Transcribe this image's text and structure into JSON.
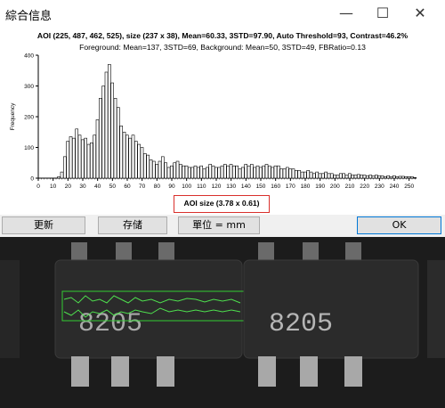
{
  "window": {
    "title": "綜合信息",
    "minimize_icon": "minimize-icon",
    "maximize_icon": "maximize-icon",
    "close_icon": "close-icon"
  },
  "info": {
    "line1": "AOI (225, 487, 462, 525), size (237 x 38), Mean=60.33, 3STD=97.90, Auto Threshold=93, Contrast=46.2%",
    "line2": "Foreground: Mean=137, 3STD=69, Background: Mean=50, 3STD=49, FBRatio=0.13"
  },
  "aoi_size": "AOI size (3.78 x 0.61)",
  "buttons": {
    "refresh": "更新",
    "save": "存储",
    "unit": "單位 = mm",
    "ok": "OK"
  },
  "photo": {
    "chip_left_text": "8205",
    "chip_right_text": "8205"
  },
  "chart_data": {
    "type": "bar",
    "ylabel": "Frequency",
    "xlabel": "",
    "ylim": [
      0,
      400
    ],
    "xlim": [
      0,
      255
    ],
    "yticks": [
      0,
      100,
      200,
      300,
      400
    ],
    "xticks": [
      0,
      10,
      20,
      30,
      40,
      50,
      60,
      70,
      80,
      90,
      100,
      110,
      120,
      130,
      140,
      150,
      160,
      170,
      180,
      190,
      200,
      210,
      220,
      230,
      240,
      250
    ],
    "bar_width": 2,
    "x": [
      14,
      16,
      18,
      20,
      22,
      24,
      26,
      28,
      30,
      32,
      34,
      36,
      38,
      40,
      42,
      44,
      46,
      48,
      50,
      52,
      54,
      56,
      58,
      60,
      62,
      64,
      66,
      68,
      70,
      72,
      74,
      76,
      78,
      80,
      82,
      84,
      86,
      88,
      90,
      92,
      94,
      96,
      98,
      100,
      102,
      104,
      106,
      108,
      110,
      112,
      114,
      116,
      118,
      120,
      122,
      124,
      126,
      128,
      130,
      132,
      134,
      136,
      138,
      140,
      142,
      144,
      146,
      148,
      150,
      152,
      154,
      156,
      158,
      160,
      162,
      164,
      166,
      168,
      170,
      172,
      174,
      176,
      178,
      180,
      182,
      184,
      186,
      188,
      190,
      192,
      194,
      196,
      198,
      200,
      202,
      204,
      206,
      208,
      210,
      212,
      214,
      216,
      218,
      220,
      222,
      224,
      226,
      228,
      230,
      232,
      234,
      236,
      238,
      240,
      242,
      244,
      246,
      248,
      250,
      252,
      254
    ],
    "values": [
      5,
      20,
      70,
      120,
      135,
      130,
      160,
      140,
      125,
      130,
      110,
      115,
      140,
      190,
      260,
      300,
      345,
      370,
      310,
      260,
      230,
      170,
      150,
      140,
      130,
      140,
      120,
      110,
      100,
      80,
      75,
      60,
      55,
      45,
      55,
      70,
      50,
      35,
      40,
      50,
      55,
      45,
      40,
      40,
      35,
      35,
      40,
      35,
      40,
      30,
      35,
      45,
      40,
      35,
      35,
      40,
      45,
      40,
      45,
      40,
      40,
      30,
      35,
      45,
      40,
      45,
      35,
      40,
      35,
      40,
      45,
      40,
      35,
      40,
      40,
      30,
      30,
      35,
      30,
      30,
      25,
      25,
      20,
      20,
      25,
      20,
      15,
      20,
      15,
      15,
      20,
      15,
      15,
      10,
      10,
      15,
      15,
      10,
      15,
      10,
      10,
      12,
      10,
      10,
      8,
      10,
      8,
      10,
      8,
      8,
      5,
      8,
      5,
      8,
      5,
      6,
      6,
      5,
      5,
      5,
      2
    ]
  }
}
